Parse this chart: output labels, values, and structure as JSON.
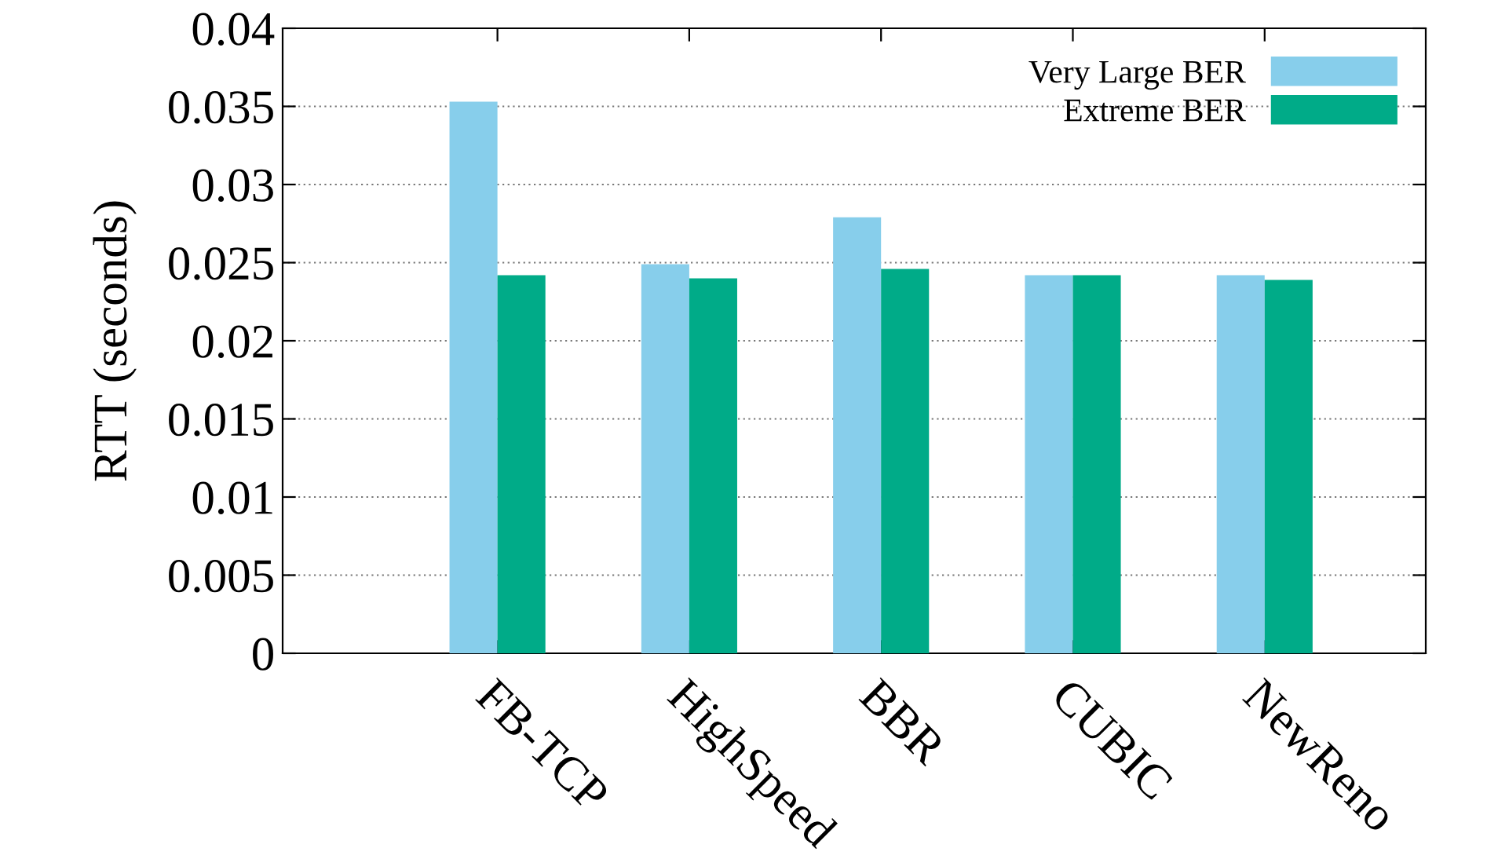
{
  "chart_data": {
    "type": "bar",
    "ylabel": "RTT (seconds)",
    "categories": [
      "FB-TCP",
      "HighSpeed",
      "BBR",
      "CUBIC",
      "NewReno"
    ],
    "series": [
      {
        "name": "Very Large BER",
        "color": "#87ceeb",
        "values": [
          0.0353,
          0.0249,
          0.0279,
          0.0242,
          0.0242
        ]
      },
      {
        "name": "Extreme BER",
        "color": "#00ab88",
        "values": [
          0.0242,
          0.024,
          0.0246,
          0.0242,
          0.0239
        ]
      }
    ],
    "ylim": [
      0,
      0.04
    ],
    "yticks": [
      {
        "value": 0,
        "label": "0"
      },
      0.005,
      0.01,
      0.015,
      0.02,
      0.025,
      0.03,
      0.035,
      0.04
    ],
    "grid": "y",
    "legend": "top right"
  }
}
